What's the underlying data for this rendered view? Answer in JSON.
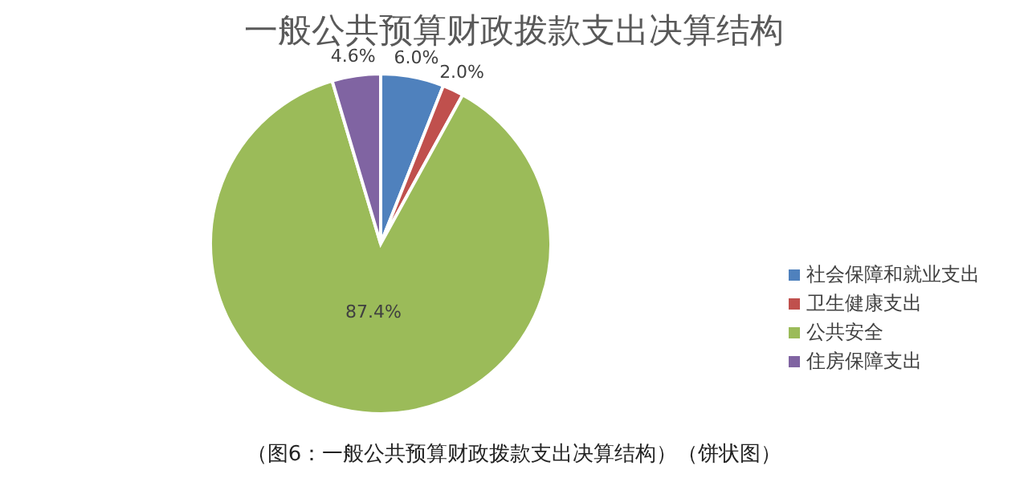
{
  "chart_data": {
    "type": "pie",
    "title": "一般公共预算财政拨款支出决算结构",
    "categories": [
      "社会保障和就业支出",
      "卫生健康支出",
      "公共安全",
      "住房保障支出"
    ],
    "values": [
      6.0,
      2.0,
      87.4,
      4.6
    ],
    "colors": [
      "#4f81bd",
      "#c0504d",
      "#9bbb59",
      "#8064a2"
    ],
    "value_labels": [
      "6.0%",
      "2.0%",
      "87.4%",
      "4.6%"
    ],
    "legend": "right",
    "annotations": [
      "（图6：一般公共预算财政拨款支出决算结构）（饼状图）"
    ]
  }
}
